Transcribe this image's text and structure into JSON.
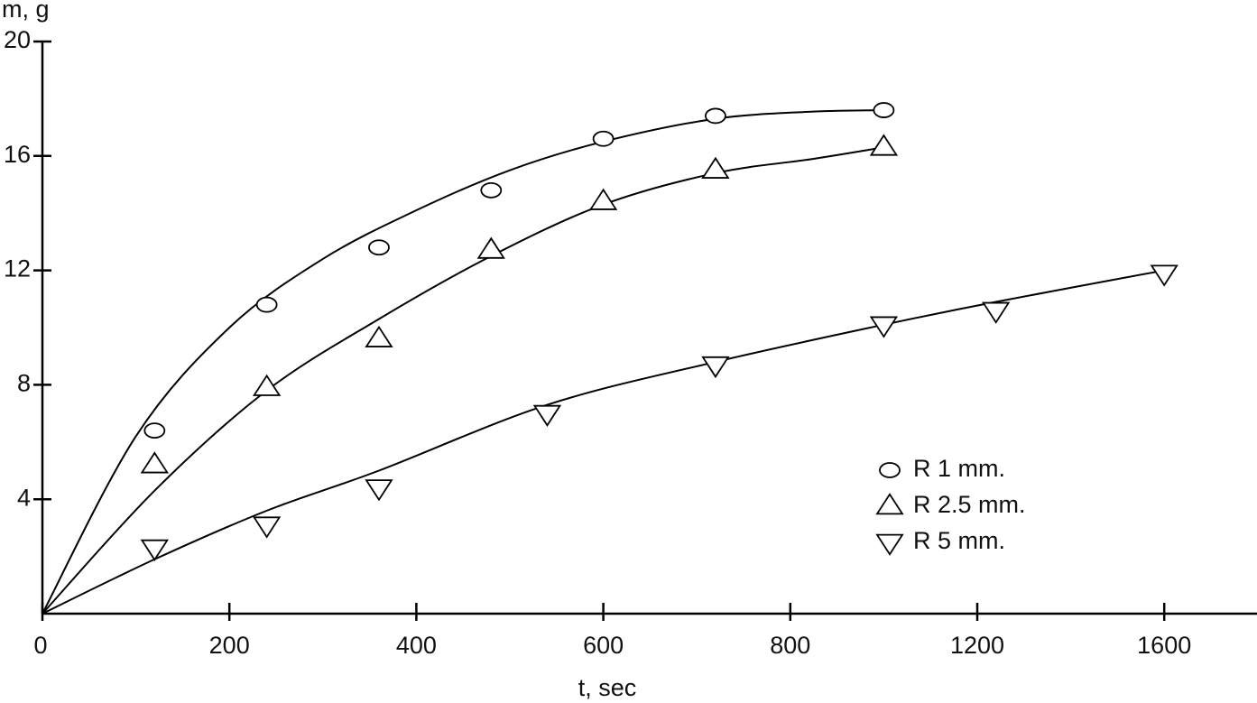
{
  "chart_data": {
    "type": "scatter",
    "x_label": "t, sec",
    "y_label": "m, g",
    "xlim": [
      0,
      1800
    ],
    "ylim": [
      0,
      20
    ],
    "xticks": [
      0,
      200,
      400,
      600,
      800,
      1200,
      1600
    ],
    "yticks": [
      4,
      8,
      12,
      16,
      20
    ],
    "legend": "lower right",
    "series": [
      {
        "name": "R 1 mm.",
        "marker": "circle",
        "color": "#000",
        "x": [
          120,
          240,
          360,
          480,
          600,
          720,
          1000
        ],
        "values": [
          6.4,
          10.8,
          12.8,
          14.8,
          16.6,
          17.4,
          17.6
        ],
        "fit": {
          "x": [
            0,
            100,
            200,
            300,
            400,
            500,
            600,
            720,
            850,
            1000
          ],
          "values": [
            0,
            6.2,
            10.0,
            12.4,
            14.1,
            15.5,
            16.5,
            17.3,
            17.55,
            17.6
          ]
        }
      },
      {
        "name": "R 2.5 mm.",
        "marker": "triangle-up",
        "color": "#000",
        "x": [
          120,
          240,
          360,
          480,
          600,
          720,
          1000
        ],
        "values": [
          5.2,
          7.9,
          9.6,
          12.7,
          14.4,
          15.5,
          16.3
        ],
        "fit": {
          "x": [
            0,
            120,
            240,
            360,
            480,
            600,
            720,
            850,
            1000
          ],
          "values": [
            0,
            4.3,
            7.8,
            10.3,
            12.5,
            14.3,
            15.4,
            15.9,
            16.3
          ]
        }
      },
      {
        "name": "R 5 mm.",
        "marker": "triangle-down",
        "color": "#000",
        "x": [
          120,
          240,
          360,
          540,
          720,
          1000,
          1240,
          1600
        ],
        "values": [
          2.3,
          3.1,
          4.4,
          7.0,
          8.7,
          10.1,
          10.6,
          11.9
        ],
        "fit": {
          "x": [
            0,
            120,
            240,
            360,
            540,
            720,
            1000,
            1240,
            1600
          ],
          "values": [
            0,
            1.9,
            3.6,
            5.0,
            7.3,
            8.8,
            10.1,
            10.9,
            12.0
          ]
        }
      }
    ]
  }
}
